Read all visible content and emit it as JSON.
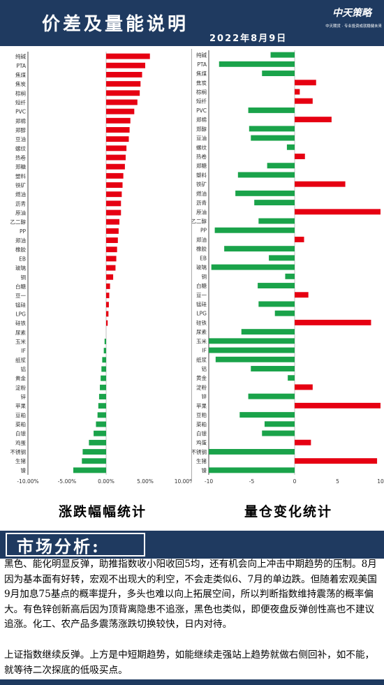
{
  "header": {
    "title": "价差及量能说明",
    "date": "2022年8月9日",
    "logo_main": "中天策略",
    "logo_sub": "中天期货 · 专业投资成就稳健未来"
  },
  "left_chart_caption": "涨跌幅幅统计",
  "right_chart_caption": "量仓变化统计",
  "section": {
    "title": "市场分析:"
  },
  "analysis": {
    "p1": "黑色、能化明显反弹，助推指数收小阳收回5均，还有机会向上冲击中期趋势的压制。8月因为基本面有好转，宏观不出现大的利空，不会走类似6、7月的单边跌。但随着宏观美国9月加息75基点的概率提升，多头也难以向上拓展空间，所以判断指数维持震荡的概率偏大。有色锌创新高后因为顶背离隐患不追涨，黑色也类似，即便夜盘反弹创性高也不建议追涨。化工、农产品多震荡涨跌切换较快，日内对待。",
    "p2": "上证指数继续反弹。上方是中短期趋势，如能继续走强站上趋势就做右侧回补，如不能，就等待二次探底的低吸买点。"
  },
  "chart_data": [
    {
      "type": "bar",
      "orientation": "horizontal",
      "title": "",
      "categories": [
        "纯碱",
        "PTA",
        "焦煤",
        "焦炭",
        "棕榈",
        "短纤",
        "PVC",
        "郑棉",
        "郑醇",
        "豆油",
        "螺纹",
        "热卷",
        "郑糖",
        "塑料",
        "铁矿",
        "燃油",
        "沥青",
        "原油",
        "乙二醇",
        "PP",
        "郑油",
        "橡胶",
        "EB",
        "玻璃",
        "铜",
        "白糖",
        "豆一",
        "锰硅",
        "LPG",
        "硅铁",
        "尿素",
        "玉米",
        "IF",
        "纸浆",
        "铝",
        "黄金",
        "淀粉",
        "锌",
        "苹果",
        "豆粕",
        "菜粕",
        "白银",
        "鸡蛋",
        "不锈钢",
        "生猪",
        "镍"
      ],
      "values": [
        5.6,
        5.0,
        4.6,
        4.4,
        4.3,
        4.0,
        3.6,
        3.1,
        3.0,
        2.9,
        2.6,
        2.5,
        2.4,
        2.2,
        2.1,
        2.0,
        1.9,
        1.9,
        1.7,
        1.6,
        1.5,
        1.4,
        1.3,
        1.2,
        0.9,
        0.5,
        0.4,
        0.35,
        0.3,
        0.2,
        0.0,
        -0.2,
        -0.3,
        -0.5,
        -0.6,
        -0.7,
        -0.8,
        -0.9,
        -1.0,
        -1.1,
        -1.3,
        -1.6,
        -2.2,
        -3.0,
        -3.1,
        -4.2
      ],
      "xlim": [
        -10,
        10
      ],
      "xticks": [
        "-10.00%",
        "-5.00%",
        "0.00%",
        "5.00%",
        "10.00%"
      ],
      "colors": {
        "positive": "#e60012",
        "negative": "#1aa34a"
      }
    },
    {
      "type": "bar",
      "orientation": "horizontal",
      "title": "",
      "categories": [
        "纯碱",
        "PTA",
        "焦煤",
        "焦炭",
        "棕榈",
        "短纤",
        "PVC",
        "郑棉",
        "郑醇",
        "豆油",
        "螺纹",
        "热卷",
        "郑糖",
        "塑料",
        "铁矿",
        "燃油",
        "沥青",
        "原油",
        "乙二醇",
        "PP",
        "郑油",
        "橡胶",
        "EB",
        "玻璃",
        "铜",
        "白糖",
        "豆一",
        "锰硅",
        "LPG",
        "硅铁",
        "尿素",
        "玉米",
        "IF",
        "纸浆",
        "铝",
        "黄金",
        "淀粉",
        "锌",
        "苹果",
        "豆粕",
        "菜粕",
        "白银",
        "鸡蛋",
        "不锈钢",
        "生猪",
        "镍"
      ],
      "values": [
        -2.8,
        -8.8,
        -3.8,
        2.5,
        0.6,
        2.1,
        -5.4,
        4.3,
        -5.3,
        -5.1,
        -0.9,
        1.2,
        -3.2,
        -6.6,
        5.9,
        -6.9,
        -4.7,
        10.2,
        -4.2,
        -9.3,
        1.1,
        -8.2,
        -3.0,
        -9.7,
        -1.1,
        -4.3,
        1.6,
        -4.2,
        -2.3,
        8.9,
        -6.2,
        -10.5,
        -10.5,
        -9.2,
        -5.1,
        -0.8,
        2.1,
        -5.4,
        10.0,
        -6.4,
        -3.5,
        -3.8,
        1.9,
        -10.5,
        9.6,
        -10.5
      ],
      "xlim": [
        -10,
        10
      ],
      "xticks": [
        "-10",
        "-5",
        "0",
        "5",
        "10"
      ],
      "colors": {
        "positive": "#e60012",
        "negative": "#1aa34a"
      }
    }
  ]
}
